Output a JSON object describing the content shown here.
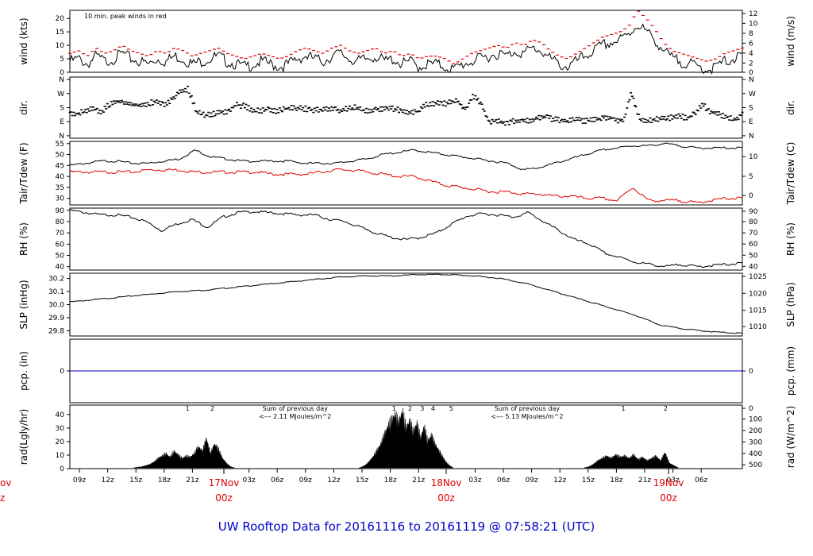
{
  "title": "UW Rooftop Data for 20161116  to  20161119 @ 07:58:21  (UTC)",
  "colors": {
    "axis": "#000000",
    "peak": "#e00000",
    "tdew": "#e00000",
    "pcp": "#0000cc",
    "rad": "#000000",
    "sumtext": "#9900cc",
    "daylabel": "#e00000",
    "title": "#0000cc"
  },
  "x_axis": {
    "hour_ticks": [
      "09z",
      "12z",
      "15z",
      "18z",
      "21z",
      "03z",
      "06z",
      "09z",
      "12z",
      "15z",
      "18z",
      "21z",
      "03z",
      "06z",
      "09z",
      "12z",
      "15z",
      "18z",
      "21z",
      "03z",
      "06z"
    ],
    "day_labels": [
      {
        "date": "17Nov",
        "time": "00z"
      },
      {
        "date": "18Nov",
        "time": "00z"
      },
      {
        "date": "19Nov",
        "time": "00z"
      }
    ],
    "cut_labels": {
      "date": "ov",
      "time": "z"
    }
  },
  "chart_data": [
    {
      "type": "line",
      "name": "wind",
      "ylabel_left": "wind (kts)",
      "ylabel_right": "wind (m/s)",
      "note": "10 min. peak winds in red",
      "ylim": [
        0,
        23
      ],
      "yticks_left": [
        0,
        5,
        10,
        15,
        20
      ],
      "yticks_right": [
        "0",
        "2",
        "4",
        "6",
        "8",
        "10",
        "12"
      ],
      "series": [
        {
          "values": [
            4,
            5,
            3,
            6,
            4,
            5,
            7,
            5,
            4,
            3,
            5,
            4,
            6,
            5,
            3,
            4,
            5,
            6,
            4,
            3,
            2,
            3,
            4,
            3,
            2,
            3,
            5,
            6,
            5,
            4,
            6,
            7,
            5,
            4,
            5,
            6,
            4,
            5,
            3,
            4,
            2,
            3,
            3,
            2,
            1,
            3,
            4,
            5,
            6,
            7,
            6,
            8,
            7,
            9,
            8,
            5,
            3,
            2,
            4,
            6,
            8,
            10,
            11,
            12,
            14,
            18,
            15,
            12,
            8,
            5,
            4,
            3,
            2,
            1,
            2,
            4,
            5,
            6
          ]
        },
        {
          "values": [
            7,
            8,
            6,
            9,
            7,
            8,
            10,
            8,
            7,
            6,
            8,
            7,
            9,
            8,
            6,
            7,
            8,
            9,
            7,
            6,
            5,
            6,
            7,
            6,
            5,
            6,
            8,
            9,
            8,
            7,
            9,
            10,
            8,
            7,
            8,
            9,
            7,
            8,
            6,
            7,
            5,
            6,
            6,
            5,
            3,
            5,
            7,
            8,
            9,
            10,
            9,
            11,
            10,
            12,
            11,
            8,
            6,
            5,
            7,
            9,
            11,
            13,
            14,
            15,
            17,
            23,
            20,
            16,
            11,
            8,
            7,
            6,
            5,
            4,
            5,
            7,
            8,
            9
          ]
        }
      ]
    },
    {
      "type": "scatter",
      "name": "dir",
      "ylabel_left": "dir.",
      "ylabel_right": "dir.",
      "ytick_labels": [
        "N",
        "W",
        "S",
        "E",
        "N"
      ],
      "values": [
        150,
        140,
        160,
        170,
        150,
        200,
        220,
        210,
        200,
        190,
        210,
        220,
        200,
        240,
        290,
        300,
        150,
        130,
        140,
        150,
        160,
        200,
        190,
        170,
        160,
        170,
        160,
        170,
        180,
        180,
        170,
        165,
        170,
        175,
        160,
        170,
        180,
        165,
        160,
        170,
        180,
        170,
        160,
        150,
        155,
        200,
        210,
        200,
        215,
        220,
        170,
        260,
        200,
        90,
        100,
        80,
        95,
        100,
        95,
        110,
        120,
        105,
        100,
        90,
        110,
        95,
        100,
        110,
        120,
        100,
        95,
        280,
        110,
        95,
        100,
        120,
        115,
        130,
        110,
        140,
        200,
        150,
        140,
        120,
        100,
        140
      ]
    },
    {
      "type": "line",
      "name": "temperature",
      "ylabel_left": "Tair/Tdew (F)",
      "ylabel_right": "Tair/Tdew (C)",
      "ylim": [
        27,
        56
      ],
      "yticks_left": [
        30,
        35,
        40,
        45,
        50,
        55
      ],
      "yticks_right": [
        "0",
        "5",
        "10"
      ],
      "series": [
        {
          "values": [
            45,
            46,
            47,
            47,
            46,
            46,
            47,
            48,
            52,
            49,
            48,
            47,
            47,
            47,
            47,
            46,
            46,
            46,
            47,
            48,
            50,
            51,
            52,
            51,
            50,
            49,
            48,
            47,
            46,
            43,
            44,
            46,
            48,
            50,
            52,
            53,
            54,
            54,
            55,
            54,
            53,
            53,
            53,
            53
          ]
        },
        {
          "values": [
            42,
            42,
            42,
            42,
            42,
            43,
            43,
            43,
            42,
            42,
            42,
            42,
            42,
            41,
            41,
            41,
            42,
            43,
            43,
            42,
            41,
            40,
            40,
            38,
            36,
            35,
            34,
            33,
            33,
            32,
            32,
            31,
            31,
            30,
            30,
            29,
            35,
            29,
            29,
            29,
            28,
            29,
            30,
            30
          ]
        }
      ]
    },
    {
      "type": "line",
      "name": "rh",
      "ylabel_left": "RH (%)",
      "ylabel_right": "RH (%)",
      "ylim": [
        37,
        92
      ],
      "yticks_left": [
        40,
        50,
        60,
        70,
        80,
        90
      ],
      "yticks_right": [
        "40",
        "50",
        "60",
        "70",
        "80",
        "90"
      ],
      "values": [
        90,
        88,
        86,
        86,
        84,
        80,
        72,
        78,
        82,
        75,
        84,
        88,
        89,
        88,
        87,
        86,
        86,
        82,
        80,
        75,
        70,
        66,
        64,
        66,
        70,
        78,
        85,
        87,
        86,
        84,
        88,
        80,
        72,
        64,
        60,
        52,
        48,
        44,
        42,
        40,
        42,
        40,
        41,
        42,
        43
      ]
    },
    {
      "type": "line",
      "name": "slp",
      "ylabel_left": "SLP (inHg)",
      "ylabel_right": "SLP (hPa)",
      "ylim": [
        29.76,
        30.24
      ],
      "yticks_left": [
        "29.8",
        "29.9",
        "30.0",
        "30.1",
        "30.2"
      ],
      "yticks_right": [
        "1010",
        "1015",
        "1020",
        "1025"
      ],
      "values": [
        30.02,
        30.04,
        30.06,
        30.08,
        30.1,
        30.11,
        30.13,
        30.15,
        30.17,
        30.19,
        30.21,
        30.22,
        30.22,
        30.23,
        30.23,
        30.22,
        30.2,
        30.16,
        30.1,
        30.04,
        29.98,
        29.92,
        29.84,
        29.81,
        29.79,
        29.78
      ]
    },
    {
      "type": "line",
      "name": "pcp",
      "ylabel_left": "pcp. (in)",
      "ylabel_right": "pcp. (mm)",
      "ytick_left": "0",
      "ytick_right": "0",
      "values": [
        0,
        0
      ]
    },
    {
      "type": "area",
      "name": "rad",
      "ylabel_left": "rad(Lgly/hr)",
      "ylabel_right": "rad (W/m^2)",
      "ylim": [
        0,
        47
      ],
      "yticks_left": [
        0,
        10,
        20,
        30,
        40
      ],
      "yticks_right": [
        "0",
        "100",
        "200",
        "300",
        "400",
        "500"
      ],
      "days": [
        {
          "start": 0.095,
          "end": 0.245,
          "values": [
            0,
            0.5,
            1,
            2,
            3,
            5,
            8,
            10,
            12,
            9,
            14,
            11,
            8,
            10,
            9,
            12,
            18,
            14,
            25,
            12,
            20,
            16,
            8,
            4,
            1,
            0
          ]
        },
        {
          "start": 0.43,
          "end": 0.57,
          "values": [
            0,
            1,
            3,
            6,
            10,
            15,
            20,
            28,
            35,
            40,
            45,
            38,
            48,
            33,
            40,
            30,
            38,
            25,
            35,
            22,
            28,
            20,
            15,
            10,
            5,
            2,
            0
          ]
        },
        {
          "start": 0.765,
          "end": 0.905,
          "values": [
            0,
            1,
            3,
            6,
            8,
            10,
            8,
            11,
            9,
            10,
            8,
            11,
            7,
            9,
            6,
            8,
            10,
            6,
            13,
            4,
            2,
            0
          ]
        }
      ],
      "hour_numbers": [
        {
          "pos": 0.175,
          "label": "1"
        },
        {
          "pos": 0.212,
          "label": "2"
        },
        {
          "pos": 0.482,
          "label": "1"
        },
        {
          "pos": 0.506,
          "label": "2"
        },
        {
          "pos": 0.524,
          "label": "3"
        },
        {
          "pos": 0.54,
          "label": "4"
        },
        {
          "pos": 0.567,
          "label": "5"
        },
        {
          "pos": 0.823,
          "label": "1"
        },
        {
          "pos": 0.886,
          "label": "2"
        }
      ],
      "sums": [
        {
          "pos": 0.335,
          "line1": "Sum of previous day",
          "line2": "<--- 2.11 MJoules/m^2"
        },
        {
          "pos": 0.68,
          "line1": "Sum of previous day",
          "line2": "<--- 5.13 MJoules/m^2"
        }
      ]
    }
  ]
}
